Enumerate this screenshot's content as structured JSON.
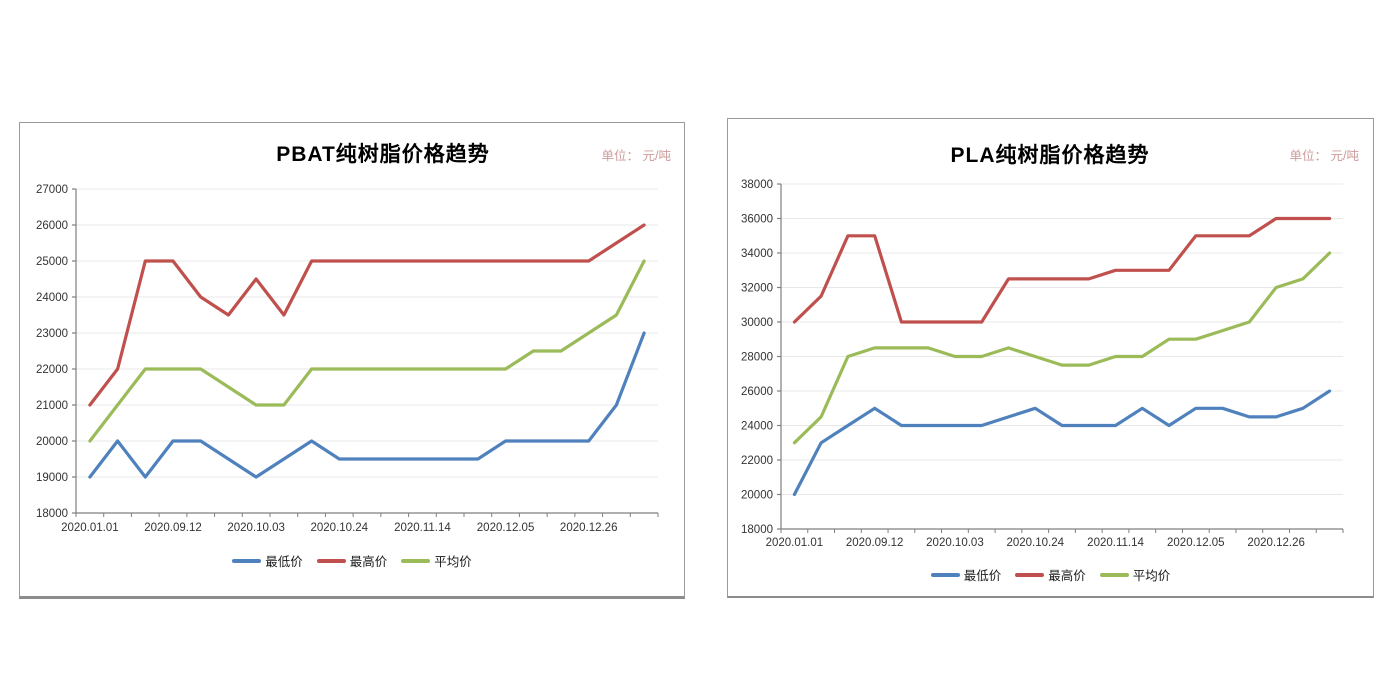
{
  "page": {
    "background": "#ffffff"
  },
  "colors": {
    "axis": "#7f7f7f",
    "grid": "#e8e8e8",
    "tick_text": "#333333",
    "unit_text": "#cc9c99",
    "card_border": "#9a9a9a",
    "series_low": "#4F81BD",
    "series_high": "#C0504D",
    "series_avg": "#9BBB59"
  },
  "chart_data": [
    {
      "type": "line",
      "title": "PBAT纯树脂价格趋势",
      "unit_label": "单位： 元/吨",
      "ylim": [
        18000,
        27000
      ],
      "y_tick_step": 1000,
      "y_tick_labels": [
        "18000",
        "19000",
        "20000",
        "21000",
        "22000",
        "23000",
        "24000",
        "25000",
        "26000",
        "27000"
      ],
      "x_tick_labels": [
        "2020.01.01",
        "2020.09.12",
        "2020.10.03",
        "2020.10.24",
        "2020.11.14",
        "2020.12.05",
        "2020.12.26"
      ],
      "x_label_point_indices": [
        0,
        3,
        6,
        9,
        12,
        15,
        18
      ],
      "n_points": 21,
      "grid": true,
      "legend_position": "bottom",
      "legend": [
        "最低价",
        "最高价",
        "平均价"
      ],
      "series": [
        {
          "name": "最低价",
          "color": "#4F81BD",
          "values": [
            19000,
            20000,
            19000,
            20000,
            20000,
            19500,
            19000,
            19500,
            20000,
            19500,
            19500,
            19500,
            19500,
            19500,
            19500,
            20000,
            20000,
            20000,
            20000,
            21000,
            23000
          ]
        },
        {
          "name": "最高价",
          "color": "#C0504D",
          "values": [
            21000,
            22000,
            25000,
            25000,
            24000,
            23500,
            24500,
            23500,
            25000,
            25000,
            25000,
            25000,
            25000,
            25000,
            25000,
            25000,
            25000,
            25000,
            25000,
            25500,
            26000
          ]
        },
        {
          "name": "平均价",
          "color": "#9BBB59",
          "values": [
            20000,
            21000,
            22000,
            22000,
            22000,
            21500,
            21000,
            21000,
            22000,
            22000,
            22000,
            22000,
            22000,
            22000,
            22000,
            22000,
            22500,
            22500,
            23000,
            23500,
            25000
          ]
        }
      ]
    },
    {
      "type": "line",
      "title": "PLA纯树脂价格趋势",
      "unit_label": "单位： 元/吨",
      "ylim": [
        18000,
        38000
      ],
      "y_tick_step": 2000,
      "y_tick_labels": [
        "18000",
        "20000",
        "22000",
        "24000",
        "26000",
        "28000",
        "30000",
        "32000",
        "34000",
        "36000",
        "38000"
      ],
      "x_tick_labels": [
        "2020.01.01",
        "2020.09.12",
        "2020.10.03",
        "2020.10.24",
        "2020.11.14",
        "2020.12.05",
        "2020.12.26"
      ],
      "x_label_point_indices": [
        0,
        3,
        6,
        9,
        12,
        15,
        18
      ],
      "n_points": 21,
      "grid": true,
      "legend_position": "bottom",
      "legend": [
        "最低价",
        "最高价",
        "平均价"
      ],
      "series": [
        {
          "name": "最低价",
          "color": "#4F81BD",
          "values": [
            20000,
            23000,
            24000,
            25000,
            24000,
            24000,
            24000,
            24000,
            24500,
            25000,
            24000,
            24000,
            24000,
            25000,
            24000,
            25000,
            25000,
            24500,
            24500,
            25000,
            26000
          ]
        },
        {
          "name": "最高价",
          "color": "#C0504D",
          "values": [
            30000,
            31500,
            35000,
            35000,
            30000,
            30000,
            30000,
            30000,
            32500,
            32500,
            32500,
            32500,
            33000,
            33000,
            33000,
            35000,
            35000,
            35000,
            36000,
            36000,
            36000
          ]
        },
        {
          "name": "平均价",
          "color": "#9BBB59",
          "values": [
            23000,
            24500,
            28000,
            28500,
            28500,
            28500,
            28000,
            28000,
            28500,
            28000,
            27500,
            27500,
            28000,
            28000,
            29000,
            29000,
            29500,
            30000,
            32000,
            32500,
            34000
          ]
        }
      ]
    }
  ]
}
